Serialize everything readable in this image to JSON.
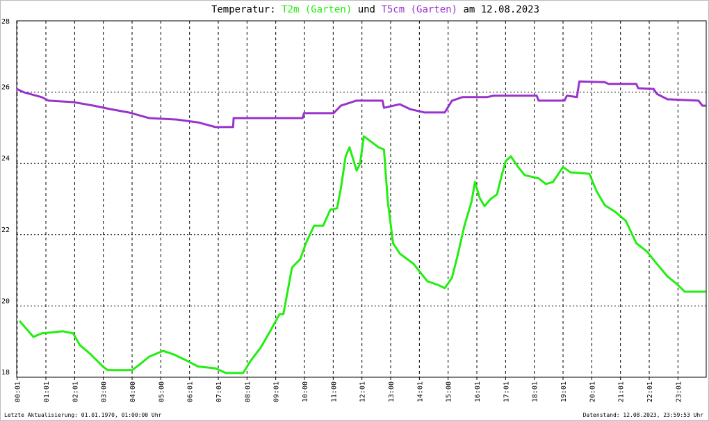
{
  "chart_data": {
    "type": "line",
    "title": {
      "prefix": "Temperatur:",
      "joiner": "und",
      "suffix": "am 12.08.2023"
    },
    "footer_left": "Letzte Aktualisierung: 01.01.1970, 01:00:00 Uhr",
    "footer_right": "Datenstand: 12.08.2023, 23:59:53 Uhr",
    "xlim": [
      0,
      1440
    ],
    "ylim": [
      18,
      28
    ],
    "yticks": [
      18,
      20,
      22,
      24,
      26,
      28
    ],
    "xticks": [
      {
        "value": 1,
        "label": "00:01"
      },
      {
        "value": 61,
        "label": "01:01"
      },
      {
        "value": 121,
        "label": "02:01"
      },
      {
        "value": 181,
        "label": "03:00"
      },
      {
        "value": 241,
        "label": "04:00"
      },
      {
        "value": 301,
        "label": "05:00"
      },
      {
        "value": 361,
        "label": "06:01"
      },
      {
        "value": 421,
        "label": "07:01"
      },
      {
        "value": 481,
        "label": "08:01"
      },
      {
        "value": 541,
        "label": "09:01"
      },
      {
        "value": 601,
        "label": "10:00"
      },
      {
        "value": 661,
        "label": "11:00"
      },
      {
        "value": 721,
        "label": "12:01"
      },
      {
        "value": 781,
        "label": "13:00"
      },
      {
        "value": 841,
        "label": "14:01"
      },
      {
        "value": 901,
        "label": "15:00"
      },
      {
        "value": 961,
        "label": "16:01"
      },
      {
        "value": 1021,
        "label": "17:01"
      },
      {
        "value": 1081,
        "label": "18:01"
      },
      {
        "value": 1141,
        "label": "19:01"
      },
      {
        "value": 1201,
        "label": "20:01"
      },
      {
        "value": 1261,
        "label": "21:01"
      },
      {
        "value": 1321,
        "label": "22:01"
      },
      {
        "value": 1381,
        "label": "23:01"
      }
    ],
    "grid": true,
    "series": [
      {
        "name": "T2m (Garten)",
        "color": "#22ee11",
        "x": [
          6,
          35,
          52,
          96,
          118,
          132,
          154,
          180,
          190,
          241,
          256,
          277,
          306,
          328,
          350,
          379,
          415,
          437,
          473,
          488,
          510,
          531,
          549,
          557,
          575,
          592,
          604,
          621,
          640,
          655,
          669,
          677,
          687,
          695,
          710,
          717,
          725,
          742,
          756,
          767,
          775,
          786,
          800,
          829,
          844,
          858,
          880,
          894,
          909,
          920,
          935,
          950,
          957,
          967,
          977,
          989,
          1003,
          1013,
          1021,
          1032,
          1047,
          1061,
          1090,
          1105,
          1120,
          1141,
          1156,
          1196,
          1211,
          1228,
          1250,
          1272,
          1294,
          1316,
          1337,
          1359,
          1381,
          1395,
          1439
        ],
        "values": [
          19.58,
          19.13,
          19.23,
          19.29,
          19.23,
          18.9,
          18.65,
          18.3,
          18.2,
          18.2,
          18.35,
          18.58,
          18.74,
          18.64,
          18.5,
          18.3,
          18.25,
          18.12,
          18.12,
          18.45,
          18.84,
          19.33,
          19.77,
          19.77,
          21.08,
          21.31,
          21.76,
          22.25,
          22.25,
          22.7,
          22.74,
          23.3,
          24.2,
          24.45,
          23.8,
          23.99,
          24.76,
          24.59,
          24.45,
          24.39,
          22.93,
          21.76,
          21.47,
          21.18,
          20.92,
          20.69,
          20.59,
          20.5,
          20.79,
          21.37,
          22.25,
          22.93,
          23.48,
          23.03,
          22.8,
          22.99,
          23.13,
          23.67,
          24.06,
          24.2,
          23.9,
          23.67,
          23.58,
          23.42,
          23.48,
          23.9,
          23.75,
          23.71,
          23.22,
          22.83,
          22.64,
          22.39,
          21.76,
          21.53,
          21.18,
          20.83,
          20.59,
          20.4,
          20.4
        ]
      },
      {
        "name": "T5cm (Garten)",
        "color": "#9933cc",
        "x": [
          0,
          16,
          52,
          67,
          118,
          161,
          197,
          234,
          277,
          335,
          379,
          415,
          452,
          453,
          597,
          600,
          662,
          677,
          709,
          764,
          767,
          800,
          822,
          851,
          894,
          909,
          931,
          982,
          996,
          1086,
          1090,
          1144,
          1149,
          1170,
          1175,
          1228,
          1236,
          1294,
          1298,
          1330,
          1337,
          1359,
          1424,
          1432,
          1439
        ],
        "values": [
          26.09,
          25.99,
          25.86,
          25.76,
          25.72,
          25.62,
          25.52,
          25.43,
          25.27,
          25.23,
          25.15,
          25.02,
          25.02,
          25.27,
          25.27,
          25.41,
          25.41,
          25.62,
          25.76,
          25.76,
          25.56,
          25.66,
          25.52,
          25.43,
          25.43,
          25.76,
          25.86,
          25.86,
          25.9,
          25.9,
          25.76,
          25.76,
          25.9,
          25.86,
          26.3,
          26.28,
          26.23,
          26.23,
          26.11,
          26.09,
          25.95,
          25.8,
          25.76,
          25.62,
          25.62
        ]
      }
    ]
  }
}
